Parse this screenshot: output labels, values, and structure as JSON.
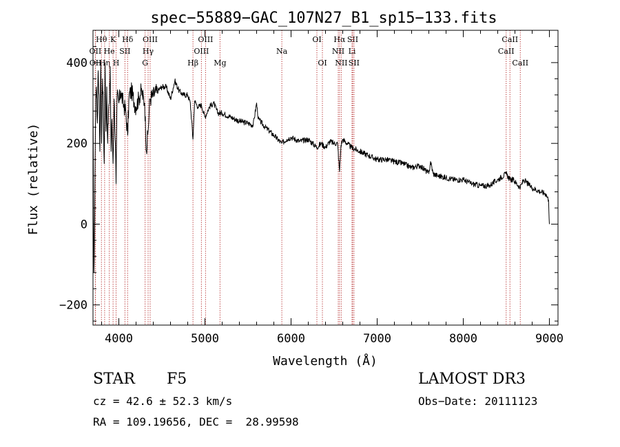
{
  "chart_data": {
    "type": "line",
    "title": "spec−55889−GAC_107N27_B1_sp15−133.fits",
    "xlabel": "Wavelength (Å)",
    "ylabel": "Flux (relative)",
    "xlim": [
      3700,
      9100
    ],
    "ylim": [
      -250,
      480
    ],
    "xticks": [
      4000,
      5000,
      6000,
      7000,
      8000,
      9000
    ],
    "yticks": [
      -200,
      0,
      200,
      400
    ],
    "ytick_labels": [
      "−200",
      "0",
      "200",
      "400"
    ],
    "series": [
      {
        "name": "flux",
        "x": [
          3700,
          3710,
          3720,
          3730,
          3740,
          3750,
          3760,
          3770,
          3780,
          3790,
          3800,
          3810,
          3820,
          3830,
          3840,
          3850,
          3860,
          3870,
          3880,
          3890,
          3900,
          3910,
          3920,
          3933,
          3945,
          3960,
          3968,
          3980,
          4000,
          4020,
          4050,
          4080,
          4102,
          4120,
          4150,
          4180,
          4200,
          4230,
          4260,
          4300,
          4320,
          4340,
          4360,
          4400,
          4450,
          4500,
          4550,
          4600,
          4650,
          4700,
          4750,
          4800,
          4830,
          4861,
          4880,
          4920,
          4960,
          5000,
          5050,
          5100,
          5150,
          5200,
          5300,
          5400,
          5500,
          5560,
          5600,
          5620,
          5700,
          5800,
          5890,
          5950,
          6000,
          6100,
          6200,
          6250,
          6300,
          6350,
          6400,
          6450,
          6500,
          6540,
          6563,
          6580,
          6600,
          6650,
          6700,
          6800,
          6900,
          7000,
          7100,
          7200,
          7300,
          7400,
          7500,
          7600,
          7620,
          7650,
          7700,
          7800,
          7900,
          8000,
          8100,
          8200,
          8300,
          8400,
          8498,
          8542,
          8580,
          8662,
          8700,
          8800,
          8900,
          8960,
          8990,
          9000
        ],
        "y": [
          300,
          -120,
          20,
          310,
          340,
          250,
          380,
          320,
          180,
          400,
          200,
          360,
          290,
          150,
          400,
          230,
          340,
          200,
          280,
          300,
          390,
          180,
          260,
          150,
          310,
          200,
          100,
          320,
          300,
          330,
          300,
          280,
          220,
          320,
          330,
          300,
          290,
          310,
          330,
          300,
          180,
          230,
          310,
          320,
          330,
          340,
          340,
          310,
          355,
          330,
          320,
          320,
          300,
          210,
          305,
          290,
          295,
          265,
          290,
          300,
          275,
          275,
          265,
          255,
          250,
          245,
          300,
          260,
          240,
          220,
          200,
          210,
          215,
          205,
          210,
          200,
          190,
          200,
          190,
          205,
          200,
          200,
          130,
          195,
          210,
          200,
          190,
          180,
          170,
          160,
          160,
          155,
          150,
          140,
          145,
          125,
          155,
          125,
          120,
          115,
          110,
          110,
          100,
          95,
          95,
          110,
          125,
          110,
          110,
          90,
          110,
          90,
          80,
          75,
          60,
          0
        ]
      }
    ],
    "lines": [
      {
        "name": "Hθ",
        "wave": 3798,
        "row": 1
      },
      {
        "name": "OII",
        "wave": 3727,
        "row": 2
      },
      {
        "name": "OII",
        "wave": 3729,
        "row": 3
      },
      {
        "name": "Hη",
        "wave": 3835,
        "row": 3
      },
      {
        "name": "He",
        "wave": 3889,
        "row": 2
      },
      {
        "name": "K",
        "wave": 3933,
        "row": 1
      },
      {
        "name": "SII",
        "wave": 4071,
        "row": 2
      },
      {
        "name": "H",
        "wave": 3968,
        "row": 3
      },
      {
        "name": "Hδ",
        "wave": 4102,
        "row": 1
      },
      {
        "name": "OIII",
        "wave": 4364,
        "row": 1
      },
      {
        "name": "Hγ",
        "wave": 4340,
        "row": 2
      },
      {
        "name": "G",
        "wave": 4305,
        "row": 3
      },
      {
        "name": "Hβ",
        "wave": 4861,
        "row": 3
      },
      {
        "name": "OIII",
        "wave": 5007,
        "row": 1
      },
      {
        "name": "OIII",
        "wave": 4959,
        "row": 2
      },
      {
        "name": "Mg",
        "wave": 5175,
        "row": 3
      },
      {
        "name": "Na",
        "wave": 5893,
        "row": 2
      },
      {
        "name": "OI",
        "wave": 6300,
        "row": 1
      },
      {
        "name": "OI",
        "wave": 6364,
        "row": 3
      },
      {
        "name": "Hα",
        "wave": 6563,
        "row": 1
      },
      {
        "name": "NII",
        "wave": 6548,
        "row": 2
      },
      {
        "name": "NII",
        "wave": 6583,
        "row": 3
      },
      {
        "name": "SII",
        "wave": 6716,
        "row": 1
      },
      {
        "name": "Li",
        "wave": 6708,
        "row": 2
      },
      {
        "name": "SII",
        "wave": 6731,
        "row": 3
      },
      {
        "name": "CaII",
        "wave": 8542,
        "row": 1
      },
      {
        "name": "CaII",
        "wave": 8498,
        "row": 2
      },
      {
        "name": "CaII",
        "wave": 8662,
        "row": 3
      }
    ]
  },
  "info": {
    "class_label": "STAR",
    "subclass": "F5",
    "survey": "LAMOST DR3",
    "cz": "cz = 42.6 ± 52.3 km/s",
    "obs_date": "Obs−Date: 20111123",
    "radec": "RA = 109.19656, DEC =  28.99598"
  },
  "colors": {
    "spectrum": "#000000",
    "line_marker": "#b22222",
    "axis": "#000000"
  }
}
